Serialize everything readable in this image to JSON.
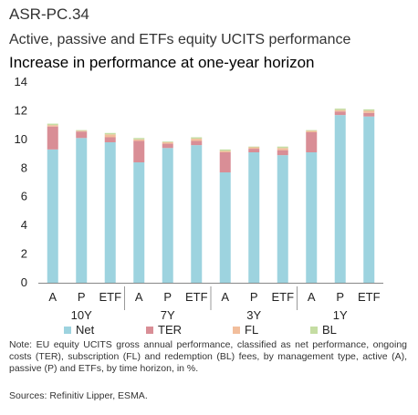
{
  "figure_id": "ASR-PC.34",
  "title": "Active, passive and ETFs equity UCITS performance",
  "subtitle": "Increase in performance at one-year horizon",
  "note": "Note: EU equity UCITS gross annual performance, classified as net performance, ongoing costs (TER), subscription (FL) and redemption (BL) fees, by management type, active (A), passive (P) and ETFs, by time horizon, in %.",
  "source": "Sources: Refinitiv Lipper, ESMA.",
  "chart_data": {
    "type": "bar",
    "stacked": true,
    "categories": [
      "A",
      "P",
      "ETF",
      "A",
      "P",
      "ETF",
      "A",
      "P",
      "ETF",
      "A",
      "P",
      "ETF"
    ],
    "groups": [
      {
        "label": "10Y",
        "start": 0,
        "end": 2
      },
      {
        "label": "7Y",
        "start": 3,
        "end": 5
      },
      {
        "label": "3Y",
        "start": 6,
        "end": 8
      },
      {
        "label": "1Y",
        "start": 9,
        "end": 11
      }
    ],
    "series": [
      {
        "name": "Net",
        "color": "#9DD3DF",
        "values": [
          9.3,
          10.1,
          9.8,
          8.4,
          9.4,
          9.6,
          7.7,
          9.1,
          8.9,
          9.1,
          11.7,
          11.6
        ]
      },
      {
        "name": "TER",
        "color": "#D98E96",
        "values": [
          1.6,
          0.45,
          0.35,
          1.5,
          0.3,
          0.3,
          1.4,
          0.25,
          0.35,
          1.4,
          0.25,
          0.25
        ]
      },
      {
        "name": "FL",
        "color": "#F2BE9C",
        "values": [
          0.1,
          0.05,
          0.2,
          0.1,
          0.1,
          0.15,
          0.1,
          0.1,
          0.15,
          0.1,
          0.1,
          0.15
        ]
      },
      {
        "name": "BL",
        "color": "#C5DDA3",
        "values": [
          0.1,
          0.05,
          0.1,
          0.1,
          0.05,
          0.1,
          0.1,
          0.05,
          0.1,
          0.05,
          0.1,
          0.1
        ]
      }
    ],
    "ylim": [
      0,
      14
    ],
    "yticks": [
      0,
      2,
      4,
      6,
      8,
      10,
      12,
      14
    ],
    "legend": "bottom",
    "grid": false
  }
}
